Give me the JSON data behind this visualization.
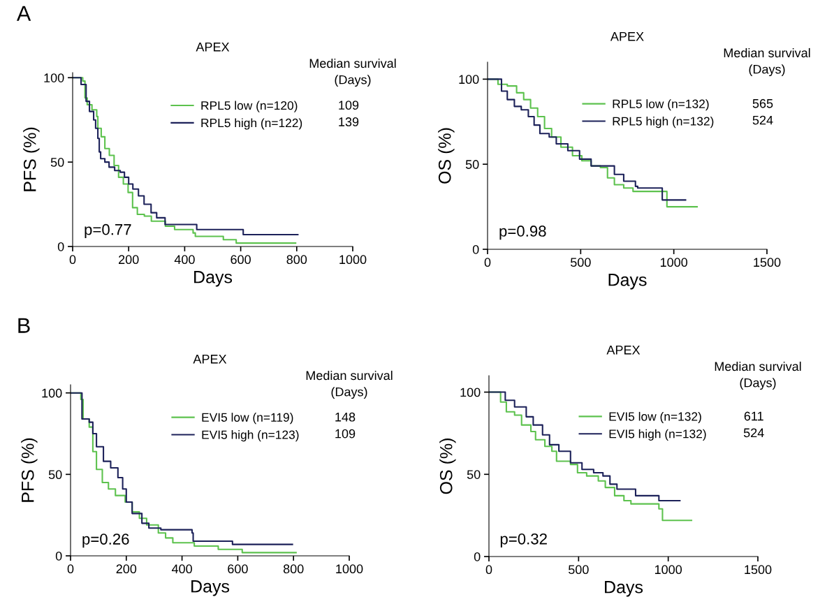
{
  "chart_data": [
    {
      "type": "step",
      "title": "APEX",
      "xlabel": "Days",
      "ylabel": "PFS (%)",
      "xlim": [
        0,
        1000
      ],
      "xticks": [
        0,
        200,
        400,
        600,
        800,
        1000
      ],
      "ylim": [
        0,
        103
      ],
      "yticks": [
        0,
        50,
        100
      ],
      "legend": "top right",
      "grid": false,
      "annotations": [
        "p=0.77",
        "Median survival\n(Days)",
        "109",
        "139",
        "A"
      ],
      "series": [
        {
          "name": "RPL5 low (n=120)",
          "color": "#5dc24e",
          "x": [
            0,
            15,
            36,
            44,
            52,
            69,
            86,
            90,
            102,
            115,
            131,
            148,
            164,
            181,
            198,
            214,
            231,
            256,
            281,
            331,
            364,
            430,
            438,
            538,
            584,
            796
          ],
          "values": [
            100,
            100,
            98,
            88,
            84,
            81,
            77,
            70,
            65,
            58,
            54,
            48,
            41,
            37,
            32,
            23,
            19,
            18,
            15,
            12,
            10,
            8,
            6,
            4,
            2,
            2
          ]
        },
        {
          "name": "RPL5 high (n=122)",
          "color": "#1c2159",
          "x": [
            0,
            15,
            30,
            48,
            60,
            75,
            82,
            90,
            95,
            100,
            115,
            130,
            150,
            170,
            185,
            200,
            215,
            235,
            255,
            280,
            300,
            330,
            443,
            609,
            804
          ],
          "values": [
            100,
            100,
            96,
            86,
            80,
            75,
            70,
            64,
            56,
            52,
            50,
            47,
            45,
            44,
            41,
            37,
            34,
            30,
            25,
            20,
            17,
            13,
            10,
            7,
            7
          ]
        }
      ]
    },
    {
      "type": "step",
      "title": "APEX",
      "xlabel": "Days",
      "ylabel": "OS (%)",
      "xlim": [
        0,
        1500
      ],
      "xticks": [
        0,
        500,
        1000,
        1500
      ],
      "ylim": [
        0,
        110
      ],
      "yticks": [
        0,
        50,
        100
      ],
      "legend": "top right",
      "grid": false,
      "annotations": [
        "p=0.98",
        "Median survival\n(Days)",
        "565",
        "524"
      ],
      "series": [
        {
          "name": "RPL5 low (n=132)",
          "color": "#5dc24e",
          "x": [
            0,
            56,
            106,
            156,
            194,
            231,
            269,
            306,
            344,
            394,
            456,
            506,
            556,
            606,
            644,
            681,
            731,
            781,
            956,
            963,
            1125
          ],
          "values": [
            100,
            97,
            96,
            92,
            88,
            83,
            78,
            71,
            66,
            60,
            55,
            52,
            49,
            48,
            42,
            38,
            36,
            34,
            34,
            25,
            25
          ]
        },
        {
          "name": "RPL5 high (n=132)",
          "color": "#1c2159",
          "x": [
            0,
            56,
            75,
            106,
            144,
            181,
            219,
            250,
            281,
            331,
            369,
            431,
            494,
            556,
            650,
            681,
            731,
            794,
            806,
            938,
            1063
          ],
          "values": [
            100,
            100,
            93,
            88,
            84,
            82,
            78,
            73,
            68,
            66,
            62,
            58,
            53,
            49,
            49,
            44,
            40,
            37,
            36,
            29,
            29
          ]
        }
      ]
    },
    {
      "type": "step",
      "title": "APEX",
      "xlabel": "Days",
      "ylabel": "PFS (%)",
      "xlim": [
        0,
        1000
      ],
      "xticks": [
        0,
        200,
        400,
        600,
        800,
        1000
      ],
      "ylim": [
        0,
        105
      ],
      "yticks": [
        0,
        50,
        100
      ],
      "legend": "top right",
      "grid": false,
      "annotations": [
        "p=0.26",
        "Median survival\n(Days)",
        "148",
        "109",
        "B"
      ],
      "series": [
        {
          "name": "EVI5 low (n=119)",
          "color": "#5dc24e",
          "x": [
            0,
            25,
            37,
            45,
            67,
            80,
            93,
            114,
            136,
            161,
            196,
            221,
            247,
            273,
            315,
            341,
            367,
            444,
            530,
            616,
            809
          ],
          "values": [
            100,
            100,
            96,
            84,
            79,
            64,
            53,
            45,
            41,
            37,
            33,
            27,
            23,
            19,
            14,
            11,
            8,
            6,
            4,
            2,
            2
          ]
        },
        {
          "name": "EVI5 high (n=123)",
          "color": "#1c2159",
          "x": [
            0,
            25,
            41,
            67,
            80,
            93,
            118,
            144,
            170,
            187,
            200,
            221,
            256,
            281,
            324,
            436,
            440,
            581,
            796
          ],
          "values": [
            100,
            100,
            84,
            82,
            75,
            67,
            58,
            54,
            48,
            41,
            33,
            26,
            20,
            17,
            16,
            14,
            9,
            7,
            7
          ]
        }
      ]
    },
    {
      "type": "step",
      "title": "APEX",
      "xlabel": "Days",
      "ylabel": "OS (%)",
      "xlim": [
        0,
        1500
      ],
      "xticks": [
        0,
        500,
        1000,
        1500
      ],
      "ylim": [
        0,
        110
      ],
      "yticks": [
        0,
        50,
        100
      ],
      "legend": "top right",
      "grid": false,
      "annotations": [
        "p=0.32",
        "Median survival\n(Days)",
        "611",
        "524"
      ],
      "series": [
        {
          "name": "EVI5 low (n=132)",
          "color": "#5dc24e",
          "x": [
            0,
            52,
            65,
            97,
            143,
            182,
            234,
            260,
            312,
            351,
            377,
            455,
            494,
            545,
            610,
            649,
            701,
            753,
            792,
            948,
            968,
            1130
          ],
          "values": [
            100,
            100,
            94,
            88,
            86,
            80,
            76,
            71,
            67,
            64,
            58,
            56,
            51,
            49,
            46,
            42,
            37,
            34,
            32,
            29,
            22,
            22
          ]
        },
        {
          "name": "EVI5 high (n=132)",
          "color": "#1c2159",
          "x": [
            0,
            52,
            91,
            143,
            208,
            247,
            299,
            338,
            390,
            455,
            519,
            584,
            636,
            675,
            714,
            818,
            948,
            1065
          ],
          "values": [
            100,
            100,
            95,
            91,
            85,
            80,
            74,
            68,
            64,
            57,
            53,
            51,
            49,
            44,
            41,
            37,
            34,
            34
          ]
        }
      ]
    }
  ]
}
